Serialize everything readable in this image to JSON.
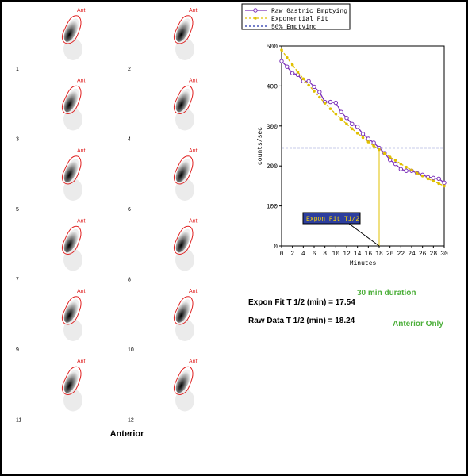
{
  "chart_data": {
    "type": "line",
    "x_label": "Minutes",
    "y_label": "counts/sec",
    "x": [
      0,
      1,
      2,
      3,
      4,
      5,
      6,
      7,
      8,
      9,
      10,
      11,
      12,
      13,
      14,
      15,
      16,
      17,
      18,
      19,
      20,
      21,
      22,
      23,
      24,
      25,
      26,
      27,
      28,
      29,
      30
    ],
    "series": [
      {
        "name": "Raw Gastric Emptying",
        "color": "#7a2fb8",
        "marker": "circle",
        "values": [
          462,
          448,
          432,
          428,
          412,
          412,
          398,
          385,
          360,
          360,
          358,
          335,
          320,
          305,
          298,
          280,
          268,
          258,
          245,
          232,
          215,
          205,
          192,
          188,
          188,
          182,
          178,
          172,
          170,
          168,
          158
        ]
      },
      {
        "name": "Exponential Fit",
        "color": "#e0c000",
        "marker": "dot",
        "dash": true,
        "values": [
          490,
          471,
          453,
          435,
          418,
          402,
          387,
          372,
          357,
          343,
          330,
          317,
          305,
          293,
          282,
          271,
          260,
          250,
          241,
          231,
          222,
          214,
          205,
          197,
          190,
          182,
          175,
          168,
          162,
          156,
          150
        ]
      },
      {
        "name": "50% Emptying",
        "color": "#2233aa",
        "marker": "none",
        "dash": true,
        "x": [
          0,
          30
        ],
        "values": [
          245,
          245
        ]
      }
    ],
    "annotation": {
      "text": "Expon_Fit T1/2",
      "x": 18,
      "y": 245
    },
    "xlim": [
      0,
      30
    ],
    "xticks": [
      0,
      2,
      4,
      6,
      8,
      10,
      12,
      14,
      16,
      18,
      20,
      22,
      24,
      26,
      28,
      30
    ],
    "ylim": [
      0,
      500
    ],
    "yticks": [
      0,
      100,
      200,
      300,
      400,
      500
    ]
  },
  "images": [
    {
      "label": "Ant",
      "number": "1"
    },
    {
      "label": "Ant",
      "number": "2"
    },
    {
      "label": "Ant",
      "number": "3"
    },
    {
      "label": "Ant",
      "number": "4"
    },
    {
      "label": "Ant",
      "number": "5"
    },
    {
      "label": "Ant",
      "number": "6"
    },
    {
      "label": "Ant",
      "number": "7"
    },
    {
      "label": "Ant",
      "number": "8"
    },
    {
      "label": "Ant",
      "number": "9"
    },
    {
      "label": "Ant",
      "number": "10"
    },
    {
      "label": "Ant",
      "number": "11"
    },
    {
      "label": "Ant",
      "number": "12"
    }
  ],
  "view_label": "Anterior",
  "stats": {
    "duration": "30 min duration",
    "expon_fit": "Expon Fit T 1/2 (min) = 17.54",
    "raw_data": "Raw Data T 1/2 (min) = 18.24",
    "note": "Anterior Only"
  }
}
